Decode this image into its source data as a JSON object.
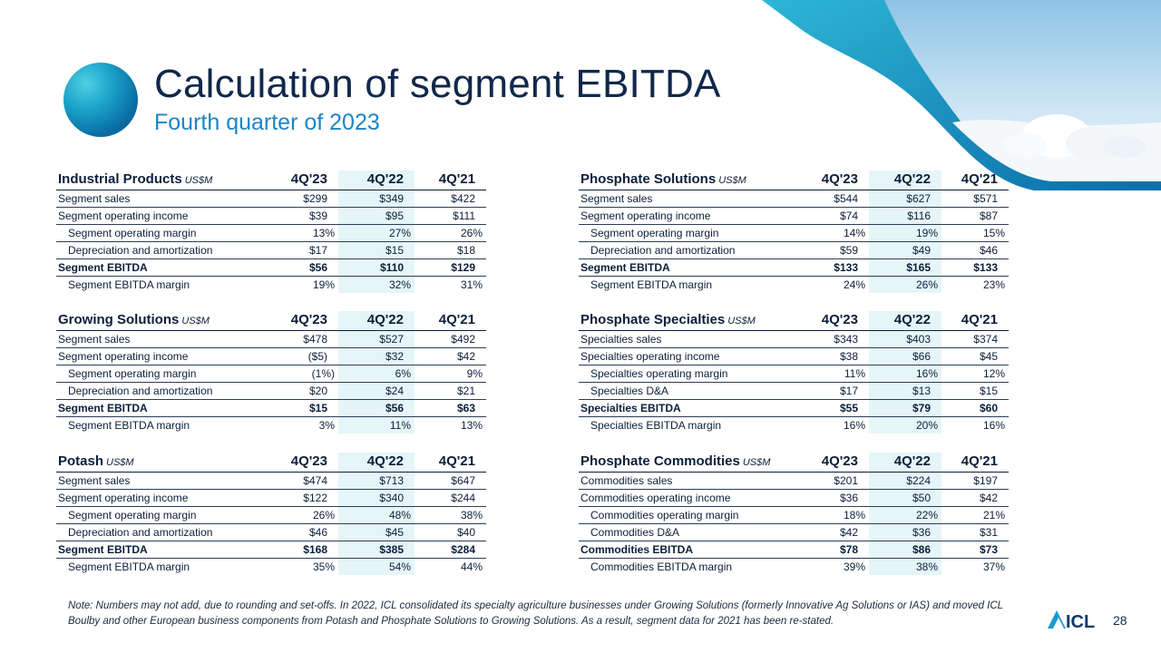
{
  "title": "Calculation of segment EBITDA",
  "subtitle": "Fourth quarter of 2023",
  "unit": "US$M",
  "columns": [
    "4Q'23",
    "4Q'22",
    "4Q'21"
  ],
  "tables": {
    "industrial": {
      "title": "Industrial Products",
      "rows": [
        {
          "label": "Segment sales",
          "values": [
            "$299",
            "$349",
            "$422"
          ]
        },
        {
          "label": "Segment operating  income",
          "values": [
            "$39",
            "$95",
            "$111"
          ]
        },
        {
          "label": "Segment operating  margin",
          "values": [
            "13%",
            "27%",
            "26%"
          ]
        },
        {
          "label": "Depreciation  and  amortization",
          "values": [
            "$17",
            "$15",
            "$18"
          ]
        },
        {
          "label": "Segment EBITDA",
          "values": [
            "$56",
            "$110",
            "$129"
          ]
        },
        {
          "label": "Segment EBITDA margin",
          "values": [
            "19%",
            "32%",
            "31%"
          ]
        }
      ]
    },
    "growing": {
      "title": "Growing Solutions",
      "rows": [
        {
          "label": "Segment sales",
          "values": [
            "$478",
            "$527",
            "$492"
          ]
        },
        {
          "label": "Segment operating  income",
          "values": [
            "($5)",
            "$32",
            "$42"
          ]
        },
        {
          "label": "Segment operating  margin",
          "values": [
            "(1%)",
            "6%",
            "9%"
          ]
        },
        {
          "label": "Depreciation  and  amortization",
          "values": [
            "$20",
            "$24",
            "$21"
          ]
        },
        {
          "label": "Segment EBITDA",
          "values": [
            "$15",
            "$56",
            "$63"
          ]
        },
        {
          "label": "Segment EBITDA margin",
          "values": [
            "3%",
            "11%",
            "13%"
          ]
        }
      ]
    },
    "potash": {
      "title": "Potash",
      "rows": [
        {
          "label": "Segment sales",
          "values": [
            "$474",
            "$713",
            "$647"
          ]
        },
        {
          "label": "Segment operating  income",
          "values": [
            "$122",
            "$340",
            "$244"
          ]
        },
        {
          "label": "Segment operating  margin",
          "values": [
            "26%",
            "48%",
            "38%"
          ]
        },
        {
          "label": "Depreciation  and  amortization",
          "values": [
            "$46",
            "$45",
            "$40"
          ]
        },
        {
          "label": "Segment EBITDA",
          "values": [
            "$168",
            "$385",
            "$284"
          ]
        },
        {
          "label": "Segment EBITDA margin",
          "values": [
            "35%",
            "54%",
            "44%"
          ]
        }
      ]
    },
    "phosphate_solutions": {
      "title": "Phosphate Solutions",
      "rows": [
        {
          "label": "Segment sales",
          "values": [
            "$544",
            "$627",
            "$571"
          ]
        },
        {
          "label": "Segment operating  income",
          "values": [
            "$74",
            "$116",
            "$87"
          ]
        },
        {
          "label": "Segment operating  margin",
          "values": [
            "14%",
            "19%",
            "15%"
          ]
        },
        {
          "label": "Depreciation  and  amortization",
          "values": [
            "$59",
            "$49",
            "$46"
          ]
        },
        {
          "label": "Segment EBITDA",
          "values": [
            "$133",
            "$165",
            "$133"
          ]
        },
        {
          "label": "Segment EBITDA margin",
          "values": [
            "24%",
            "26%",
            "23%"
          ]
        }
      ]
    },
    "phosphate_specialties": {
      "title": "Phosphate Specialties",
      "rows": [
        {
          "label": "Specialties sales",
          "values": [
            "$343",
            "$403",
            "$374"
          ]
        },
        {
          "label": "Specialties operating  income",
          "values": [
            "$38",
            "$66",
            "$45"
          ]
        },
        {
          "label": "Specialties operating  margin",
          "values": [
            "11%",
            "16%",
            "12%"
          ]
        },
        {
          "label": "Specialties D&A",
          "values": [
            "$17",
            "$13",
            "$15"
          ]
        },
        {
          "label": "Specialties  EBITDA",
          "values": [
            "$55",
            "$79",
            "$60"
          ]
        },
        {
          "label": "Specialties EBITDA margin",
          "values": [
            "16%",
            "20%",
            "16%"
          ]
        }
      ]
    },
    "phosphate_commodities": {
      "title": "Phosphate Commodities",
      "rows": [
        {
          "label": "Commodities  sales",
          "values": [
            "$201",
            "$224",
            "$197"
          ]
        },
        {
          "label": "Commodities  operating  income",
          "values": [
            "$36",
            "$50",
            "$42"
          ]
        },
        {
          "label": "Commodities  operating  margin",
          "values": [
            "18%",
            "22%",
            "21%"
          ]
        },
        {
          "label": "Commodities  D&A",
          "values": [
            "$42",
            "$36",
            "$31"
          ]
        },
        {
          "label": "Commodities EBITDA",
          "values": [
            "$78",
            "$86",
            "$73"
          ]
        },
        {
          "label": "Commodities  EBITDA margin",
          "values": [
            "39%",
            "38%",
            "37%"
          ]
        }
      ]
    }
  },
  "note": "Note: Numbers may not add, due to rounding and set-offs. In 2022, ICL consolidated its specialty agriculture  businesses under Growing Solutions (formerly Innovative Ag Solutions or IAS) and moved ICL Boulby and other European business components from Potash and Phosphate Solutions to Growing Solutions. As a result, segment data for 2021 has been re-stated.",
  "logo_text": "ICL",
  "page_number": "28",
  "colors": {
    "navy": "#10284a",
    "accent_blue": "#1a86c7",
    "shade": "#e6f5f8"
  }
}
